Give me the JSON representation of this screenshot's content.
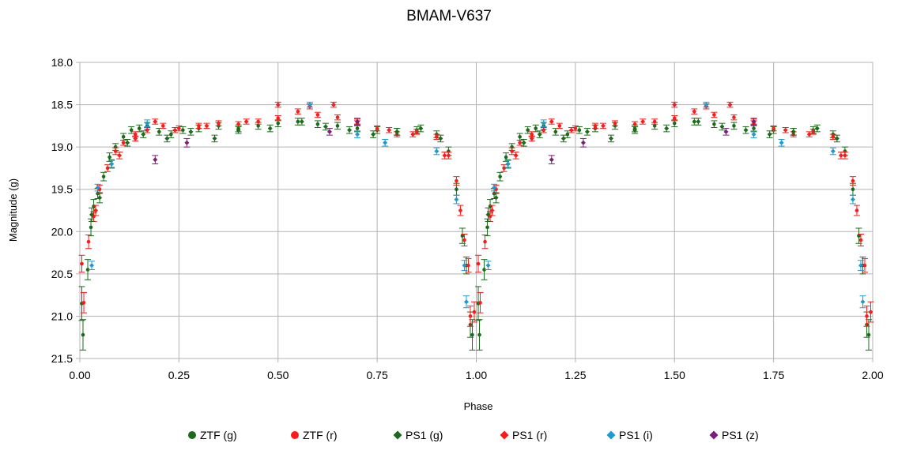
{
  "chart_data": {
    "type": "scatter",
    "title": "BMAM-V637",
    "xlabel": "Phase",
    "ylabel": "Magnitude (g)",
    "xlim": [
      0,
      2
    ],
    "ylim": [
      18.0,
      21.5
    ],
    "y_inverted": true,
    "grid": true,
    "legend_position": "bottom",
    "x_ticks": [
      "0.00",
      "0.25",
      "0.50",
      "0.75",
      "1.00",
      "1.25",
      "1.50",
      "1.75",
      "2.00"
    ],
    "y_ticks": [
      "18.0",
      "18.5",
      "19.0",
      "19.5",
      "20.0",
      "20.5",
      "21.0",
      "21.5"
    ],
    "phase_wrapped": true,
    "series": [
      {
        "name": "ZTF (g)",
        "marker": "circle",
        "color": "#1a6b1a",
        "points": [
          [
            0.005,
            20.85,
            0.2
          ],
          [
            0.008,
            21.22,
            0.18
          ],
          [
            0.02,
            20.45,
            0.12
          ],
          [
            0.028,
            19.95,
            0.1
          ],
          [
            0.035,
            19.7,
            0.08
          ],
          [
            0.045,
            19.55,
            0.06
          ],
          [
            0.06,
            19.35,
            0.05
          ],
          [
            0.075,
            19.12,
            0.05
          ],
          [
            0.09,
            19.0,
            0.04
          ],
          [
            0.11,
            18.88,
            0.04
          ],
          [
            0.13,
            18.8,
            0.04
          ],
          [
            0.15,
            18.78,
            0.04
          ],
          [
            0.17,
            18.75,
            0.04
          ],
          [
            0.2,
            18.82,
            0.04
          ],
          [
            0.23,
            18.85,
            0.04
          ],
          [
            0.26,
            18.8,
            0.04
          ],
          [
            0.3,
            18.78,
            0.04
          ],
          [
            0.35,
            18.75,
            0.04
          ],
          [
            0.4,
            18.78,
            0.04
          ],
          [
            0.45,
            18.75,
            0.04
          ],
          [
            0.5,
            18.72,
            0.04
          ],
          [
            0.55,
            18.7,
            0.04
          ],
          [
            0.6,
            18.73,
            0.04
          ],
          [
            0.65,
            18.75,
            0.04
          ],
          [
            0.7,
            18.78,
            0.04
          ],
          [
            0.75,
            18.8,
            0.04
          ],
          [
            0.8,
            18.82,
            0.04
          ],
          [
            0.85,
            18.8,
            0.04
          ],
          [
            0.9,
            18.85,
            0.04
          ],
          [
            0.93,
            19.05,
            0.05
          ],
          [
            0.95,
            19.5,
            0.07
          ],
          [
            0.965,
            20.05,
            0.09
          ],
          [
            0.975,
            20.4,
            0.1
          ],
          [
            0.985,
            21.1,
            0.15
          ],
          [
            0.99,
            21.22,
            0.18
          ]
        ]
      },
      {
        "name": "ZTF (r)",
        "marker": "circle",
        "color": "#ff1a1a",
        "points": [
          [
            0.005,
            20.38,
            0.1
          ],
          [
            0.01,
            20.84,
            0.12
          ],
          [
            0.022,
            20.12,
            0.08
          ],
          [
            0.035,
            19.82,
            0.06
          ],
          [
            0.05,
            19.5,
            0.05
          ],
          [
            0.07,
            19.25,
            0.04
          ],
          [
            0.09,
            19.05,
            0.04
          ],
          [
            0.11,
            18.95,
            0.03
          ],
          [
            0.14,
            18.85,
            0.03
          ],
          [
            0.17,
            18.8,
            0.03
          ],
          [
            0.21,
            18.75,
            0.03
          ],
          [
            0.25,
            18.78,
            0.03
          ],
          [
            0.3,
            18.75,
            0.03
          ],
          [
            0.35,
            18.72,
            0.03
          ],
          [
            0.4,
            18.73,
            0.03
          ],
          [
            0.45,
            18.7,
            0.03
          ],
          [
            0.5,
            18.66,
            0.03
          ],
          [
            0.55,
            18.58,
            0.03
          ],
          [
            0.6,
            18.62,
            0.03
          ],
          [
            0.65,
            18.65,
            0.03
          ],
          [
            0.7,
            18.72,
            0.03
          ],
          [
            0.75,
            18.78,
            0.03
          ],
          [
            0.8,
            18.85,
            0.03
          ],
          [
            0.85,
            18.82,
            0.03
          ],
          [
            0.9,
            18.88,
            0.03
          ],
          [
            0.93,
            19.1,
            0.04
          ],
          [
            0.95,
            19.4,
            0.05
          ],
          [
            0.96,
            19.75,
            0.06
          ],
          [
            0.97,
            20.1,
            0.07
          ],
          [
            0.98,
            20.4,
            0.08
          ],
          [
            0.985,
            21.0,
            0.12
          ],
          [
            0.995,
            20.95,
            0.12
          ]
        ]
      },
      {
        "name": "PS1 (g)",
        "marker": "diamond",
        "color": "#1a6b1a",
        "points": [
          [
            0.03,
            19.8,
            0.08
          ],
          [
            0.05,
            19.6,
            0.06
          ],
          [
            0.08,
            19.2,
            0.05
          ],
          [
            0.12,
            18.95,
            0.04
          ],
          [
            0.16,
            18.85,
            0.04
          ],
          [
            0.22,
            18.9,
            0.04
          ],
          [
            0.28,
            18.82,
            0.04
          ],
          [
            0.34,
            18.9,
            0.04
          ],
          [
            0.4,
            18.8,
            0.04
          ],
          [
            0.48,
            18.78,
            0.04
          ],
          [
            0.56,
            18.7,
            0.04
          ],
          [
            0.62,
            18.76,
            0.04
          ],
          [
            0.68,
            18.8,
            0.04
          ],
          [
            0.74,
            18.85,
            0.04
          ],
          [
            0.8,
            18.82,
            0.04
          ],
          [
            0.86,
            18.78,
            0.04
          ],
          [
            0.91,
            18.9,
            0.04
          ]
        ]
      },
      {
        "name": "PS1 (r)",
        "marker": "diamond",
        "color": "#ff1a1a",
        "points": [
          [
            0.04,
            19.75,
            0.06
          ],
          [
            0.1,
            19.1,
            0.04
          ],
          [
            0.14,
            18.9,
            0.03
          ],
          [
            0.19,
            18.7,
            0.03
          ],
          [
            0.24,
            18.8,
            0.03
          ],
          [
            0.32,
            18.75,
            0.03
          ],
          [
            0.42,
            18.7,
            0.03
          ],
          [
            0.5,
            18.5,
            0.03
          ],
          [
            0.58,
            18.52,
            0.03
          ],
          [
            0.64,
            18.5,
            0.03
          ],
          [
            0.7,
            18.7,
            0.03
          ],
          [
            0.78,
            18.8,
            0.03
          ],
          [
            0.84,
            18.85,
            0.03
          ],
          [
            0.92,
            19.1,
            0.04
          ]
        ]
      },
      {
        "name": "PS1 (i)",
        "marker": "diamond",
        "color": "#1a9bd6",
        "points": [
          [
            0.03,
            20.4,
            0.05
          ],
          [
            0.045,
            19.48,
            0.04
          ],
          [
            0.08,
            19.2,
            0.04
          ],
          [
            0.17,
            18.72,
            0.04
          ],
          [
            0.58,
            18.5,
            0.03
          ],
          [
            0.7,
            18.85,
            0.04
          ],
          [
            0.77,
            18.95,
            0.04
          ],
          [
            0.9,
            19.05,
            0.04
          ],
          [
            0.95,
            19.62,
            0.05
          ],
          [
            0.97,
            20.4,
            0.06
          ],
          [
            0.975,
            20.83,
            0.07
          ]
        ]
      },
      {
        "name": "PS1 (z)",
        "marker": "diamond",
        "color": "#7a1e7a",
        "points": [
          [
            0.19,
            19.15,
            0.05
          ],
          [
            0.27,
            18.95,
            0.05
          ],
          [
            0.63,
            18.82,
            0.04
          ],
          [
            0.7,
            18.7,
            0.04
          ]
        ]
      }
    ]
  }
}
